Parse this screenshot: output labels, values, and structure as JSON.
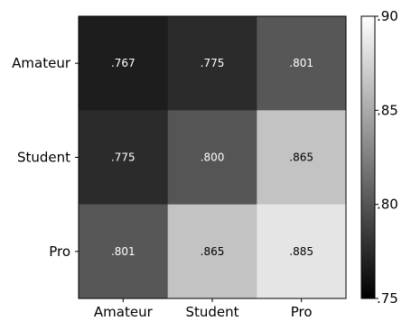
{
  "chart_data": {
    "type": "heatmap",
    "rows": [
      "Amateur",
      "Student",
      "Pro"
    ],
    "cols": [
      "Amateur",
      "Student",
      "Pro"
    ],
    "values": [
      [
        0.767,
        0.775,
        0.801
      ],
      [
        0.775,
        0.8,
        0.865
      ],
      [
        0.801,
        0.865,
        0.885
      ]
    ],
    "labels": [
      [
        ".767",
        ".775",
        ".801"
      ],
      [
        ".775",
        ".800",
        ".865"
      ],
      [
        ".801",
        ".865",
        ".885"
      ]
    ],
    "colorbar": {
      "range": [
        0.75,
        0.9
      ],
      "colormap": "grayscale (black to white)",
      "ticks": [
        {
          "value": 0.75,
          "label": ".75"
        },
        {
          "value": 0.8,
          "label": ".80"
        },
        {
          "value": 0.85,
          "label": ".85"
        },
        {
          "value": 0.9,
          "label": ".90"
        }
      ]
    },
    "title": "",
    "xlabel": "",
    "ylabel": ""
  }
}
